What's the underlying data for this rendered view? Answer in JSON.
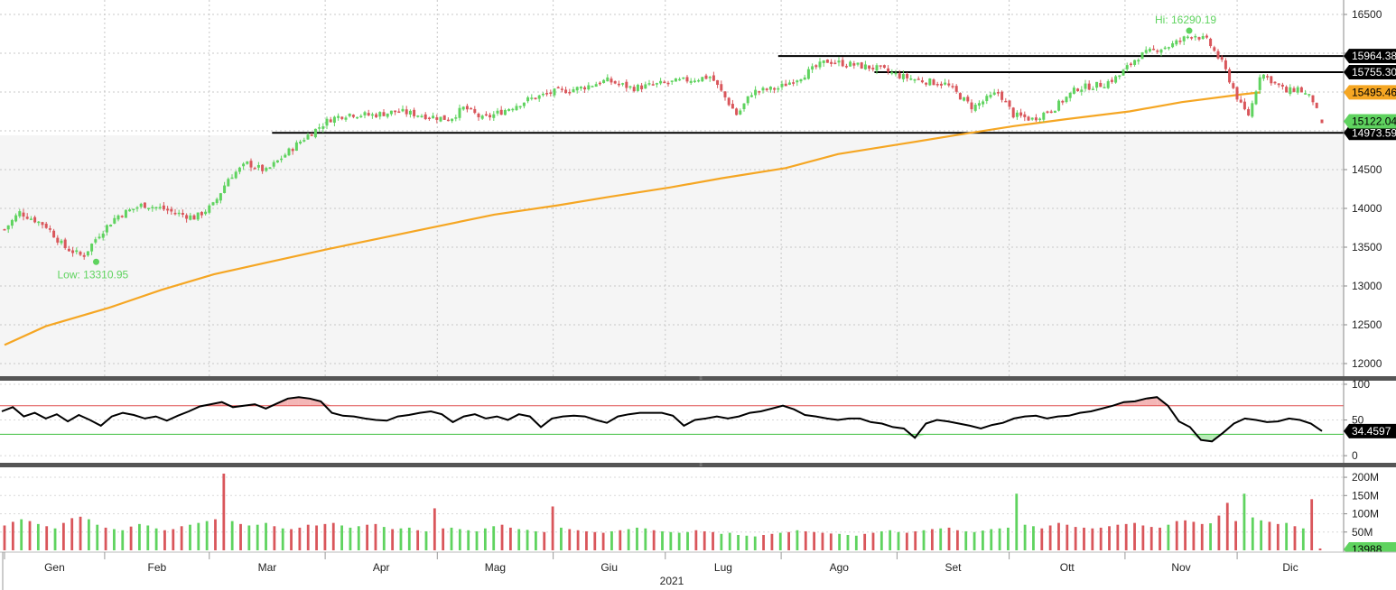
{
  "chart_data": [
    {
      "type": "candlestick",
      "panel": "price",
      "y_ticks": [
        12000,
        12500,
        13000,
        13500,
        14000,
        14500,
        15000,
        15500,
        16000,
        16500
      ],
      "ylim": [
        11800,
        16650
      ],
      "grid": true,
      "annotations": {
        "high_label": "Hi: 16290.19",
        "high_value": 16290.19,
        "low_label": "Low: 13310.95",
        "low_value": 13310.95
      },
      "horizontal_levels": [
        {
          "value": 15964.38,
          "label": "15964.38"
        },
        {
          "value": 15755.3,
          "label": "15755.30"
        },
        {
          "value": 14973.59,
          "label": "14973.59"
        }
      ],
      "moving_average": {
        "color": "#f5a623",
        "last_label": "15495.46",
        "last_value": 15495.46,
        "points": [
          [
            "01-04",
            12240
          ],
          [
            "01-15",
            12480
          ],
          [
            "02-01",
            12720
          ],
          [
            "02-15",
            12950
          ],
          [
            "03-01",
            13150
          ],
          [
            "03-15",
            13300
          ],
          [
            "04-01",
            13480
          ],
          [
            "04-15",
            13620
          ],
          [
            "05-01",
            13780
          ],
          [
            "05-15",
            13920
          ],
          [
            "06-01",
            14040
          ],
          [
            "06-15",
            14150
          ],
          [
            "07-01",
            14270
          ],
          [
            "07-15",
            14390
          ],
          [
            "08-01",
            14520
          ],
          [
            "08-15",
            14700
          ],
          [
            "09-01",
            14830
          ],
          [
            "09-15",
            14940
          ],
          [
            "10-01",
            15060
          ],
          [
            "10-15",
            15150
          ],
          [
            "11-01",
            15250
          ],
          [
            "11-15",
            15370
          ],
          [
            "12-01",
            15470
          ],
          [
            "12-06",
            15495.46
          ]
        ]
      },
      "last_price_label": "15122.04",
      "last_price_value": 15122.04,
      "up_color": "#5fd35f",
      "down_color": "#d9565b",
      "closes": [
        [
          "01-04",
          13730
        ],
        [
          "01-08",
          13950
        ],
        [
          "01-15",
          13780
        ],
        [
          "01-20",
          13500
        ],
        [
          "01-25",
          13380
        ],
        [
          "01-29",
          13650
        ],
        [
          "02-03",
          13900
        ],
        [
          "02-10",
          14050
        ],
        [
          "02-15",
          14000
        ],
        [
          "02-18",
          13950
        ],
        [
          "02-24",
          13880
        ],
        [
          "03-01",
          14050
        ],
        [
          "03-05",
          14400
        ],
        [
          "03-10",
          14580
        ],
        [
          "03-15",
          14480
        ],
        [
          "03-19",
          14650
        ],
        [
          "03-25",
          14900
        ],
        [
          "04-01",
          15150
        ],
        [
          "04-06",
          15220
        ],
        [
          "04-12",
          15200
        ],
        [
          "04-19",
          15250
        ],
        [
          "04-26",
          15200
        ],
        [
          "05-03",
          15150
        ],
        [
          "05-07",
          15300
        ],
        [
          "05-12",
          15150
        ],
        [
          "05-17",
          15250
        ],
        [
          "05-24",
          15400
        ],
        [
          "05-31",
          15500
        ],
        [
          "06-07",
          15550
        ],
        [
          "06-14",
          15650
        ],
        [
          "06-21",
          15550
        ],
        [
          "06-28",
          15600
        ],
        [
          "07-05",
          15650
        ],
        [
          "07-12",
          15700
        ],
        [
          "07-19",
          15200
        ],
        [
          "07-23",
          15500
        ],
        [
          "07-30",
          15550
        ],
        [
          "08-05",
          15700
        ],
        [
          "08-12",
          15900
        ],
        [
          "08-19",
          15850
        ],
        [
          "08-26",
          15800
        ],
        [
          "09-01",
          15700
        ],
        [
          "09-06",
          15650
        ],
        [
          "09-13",
          15600
        ],
        [
          "09-20",
          15300
        ],
        [
          "09-27",
          15500
        ],
        [
          "10-01",
          15200
        ],
        [
          "10-06",
          15150
        ],
        [
          "10-12",
          15300
        ],
        [
          "10-18",
          15550
        ],
        [
          "10-25",
          15600
        ],
        [
          "10-29",
          15700
        ],
        [
          "11-03",
          15950
        ],
        [
          "11-08",
          16050
        ],
        [
          "11-12",
          16100
        ],
        [
          "11-16",
          16200
        ],
        [
          "11-18",
          16250
        ],
        [
          "11-22",
          16150
        ],
        [
          "11-26",
          15850
        ],
        [
          "12-01",
          15300
        ],
        [
          "12-03",
          15200
        ],
        [
          "12-06",
          15750
        ],
        [
          "12-09",
          15650
        ],
        [
          "12-13",
          15500
        ],
        [
          "12-16",
          15550
        ],
        [
          "12-20",
          15400
        ],
        [
          "12-22",
          15122.04
        ]
      ]
    },
    {
      "type": "line",
      "panel": "oscillator",
      "y_ticks": [
        0,
        50,
        100
      ],
      "ylim": [
        -10,
        105
      ],
      "upper_band": 70,
      "lower_band": 30,
      "last_label": "34.4597",
      "last_value": 34.4597,
      "values": [
        62,
        68,
        55,
        60,
        52,
        58,
        48,
        57,
        50,
        42,
        55,
        60,
        57,
        52,
        55,
        49,
        56,
        62,
        69,
        72,
        75,
        68,
        70,
        72,
        66,
        73,
        80,
        82,
        80,
        76,
        60,
        56,
        55,
        52,
        50,
        49,
        55,
        57,
        60,
        62,
        58,
        47,
        55,
        58,
        52,
        55,
        50,
        58,
        55,
        40,
        52,
        55,
        56,
        55,
        50,
        46,
        55,
        58,
        60,
        60,
        60,
        56,
        42,
        50,
        52,
        55,
        52,
        55,
        60,
        62,
        66,
        70,
        65,
        57,
        55,
        52,
        50,
        52,
        52,
        47,
        45,
        40,
        38,
        25,
        45,
        50,
        48,
        45,
        42,
        38,
        43,
        46,
        52,
        55,
        56,
        52,
        55,
        56,
        60,
        62,
        66,
        70,
        75,
        76,
        80,
        82,
        70,
        48,
        40,
        22,
        20,
        32,
        45,
        52,
        50,
        47,
        48,
        52,
        50,
        45,
        34.4597
      ]
    },
    {
      "type": "bar",
      "panel": "volume",
      "y_ticks": [
        "50M",
        "100M",
        "150M",
        "200M"
      ],
      "ylim": [
        0,
        220
      ],
      "unit": "M",
      "last_label": "13988",
      "values": [
        68,
        78,
        85,
        80,
        72,
        66,
        60,
        75,
        88,
        92,
        85,
        70,
        62,
        58,
        55,
        65,
        72,
        68,
        60,
        55,
        58,
        66,
        70,
        75,
        80,
        85,
        210,
        80,
        72,
        68,
        70,
        75,
        66,
        60,
        58,
        62,
        70,
        68,
        72,
        75,
        68,
        62,
        66,
        70,
        72,
        64,
        58,
        60,
        62,
        55,
        52,
        115,
        60,
        62,
        58,
        55,
        52,
        60,
        66,
        70,
        62,
        58,
        56,
        52,
        50,
        120,
        62,
        58,
        55,
        52,
        50,
        48,
        52,
        55,
        58,
        62,
        60,
        55,
        52,
        50,
        48,
        50,
        55,
        52,
        50,
        45,
        48,
        42,
        40,
        38,
        42,
        45,
        48,
        50,
        55,
        52,
        50,
        48,
        46,
        45,
        42,
        40,
        45,
        48,
        52,
        55,
        50,
        48,
        52,
        55,
        58,
        60,
        62,
        55,
        52,
        50,
        54,
        58,
        60,
        62,
        155,
        70,
        66,
        60,
        68,
        75,
        70,
        64,
        62,
        60,
        62,
        66,
        70,
        72,
        75,
        68,
        64,
        62,
        70,
        80,
        82,
        78,
        72,
        74,
        95,
        130,
        80,
        155,
        90,
        82,
        78,
        72,
        75,
        66,
        60,
        140,
        5
      ]
    }
  ],
  "x_axis": {
    "months": [
      "Gen",
      "Feb",
      "Mar",
      "Apr",
      "Mag",
      "Giu",
      "Lug",
      "Ago",
      "Set",
      "Ott",
      "Nov",
      "Dic"
    ],
    "year": "2021"
  }
}
